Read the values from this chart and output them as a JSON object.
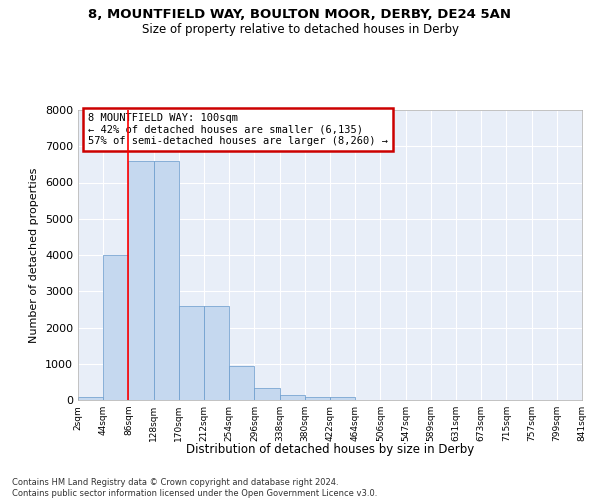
{
  "title": "8, MOUNTFIELD WAY, BOULTON MOOR, DERBY, DE24 5AN",
  "subtitle": "Size of property relative to detached houses in Derby",
  "xlabel": "Distribution of detached houses by size in Derby",
  "ylabel": "Number of detached properties",
  "bar_color": "#c5d8ef",
  "bar_edge_color": "#6699cc",
  "background_color": "#e8eef8",
  "grid_color": "#ffffff",
  "ylim": [
    0,
    8000
  ],
  "yticks": [
    0,
    1000,
    2000,
    3000,
    4000,
    5000,
    6000,
    7000,
    8000
  ],
  "bin_labels": [
    "2sqm",
    "44sqm",
    "86sqm",
    "128sqm",
    "170sqm",
    "212sqm",
    "254sqm",
    "296sqm",
    "338sqm",
    "380sqm",
    "422sqm",
    "464sqm",
    "506sqm",
    "547sqm",
    "589sqm",
    "631sqm",
    "673sqm",
    "715sqm",
    "757sqm",
    "799sqm",
    "841sqm"
  ],
  "bar_values": [
    75,
    4000,
    6600,
    6600,
    2600,
    2600,
    950,
    330,
    130,
    75,
    75,
    0,
    0,
    0,
    0,
    0,
    0,
    0,
    0,
    0
  ],
  "red_line_x": 2,
  "annotation_title": "8 MOUNTFIELD WAY: 100sqm",
  "annotation_line1": "← 42% of detached houses are smaller (6,135)",
  "annotation_line2": "57% of semi-detached houses are larger (8,260) →",
  "annotation_box_facecolor": "#ffffff",
  "annotation_box_edgecolor": "#cc0000",
  "footer_line1": "Contains HM Land Registry data © Crown copyright and database right 2024.",
  "footer_line2": "Contains public sector information licensed under the Open Government Licence v3.0."
}
